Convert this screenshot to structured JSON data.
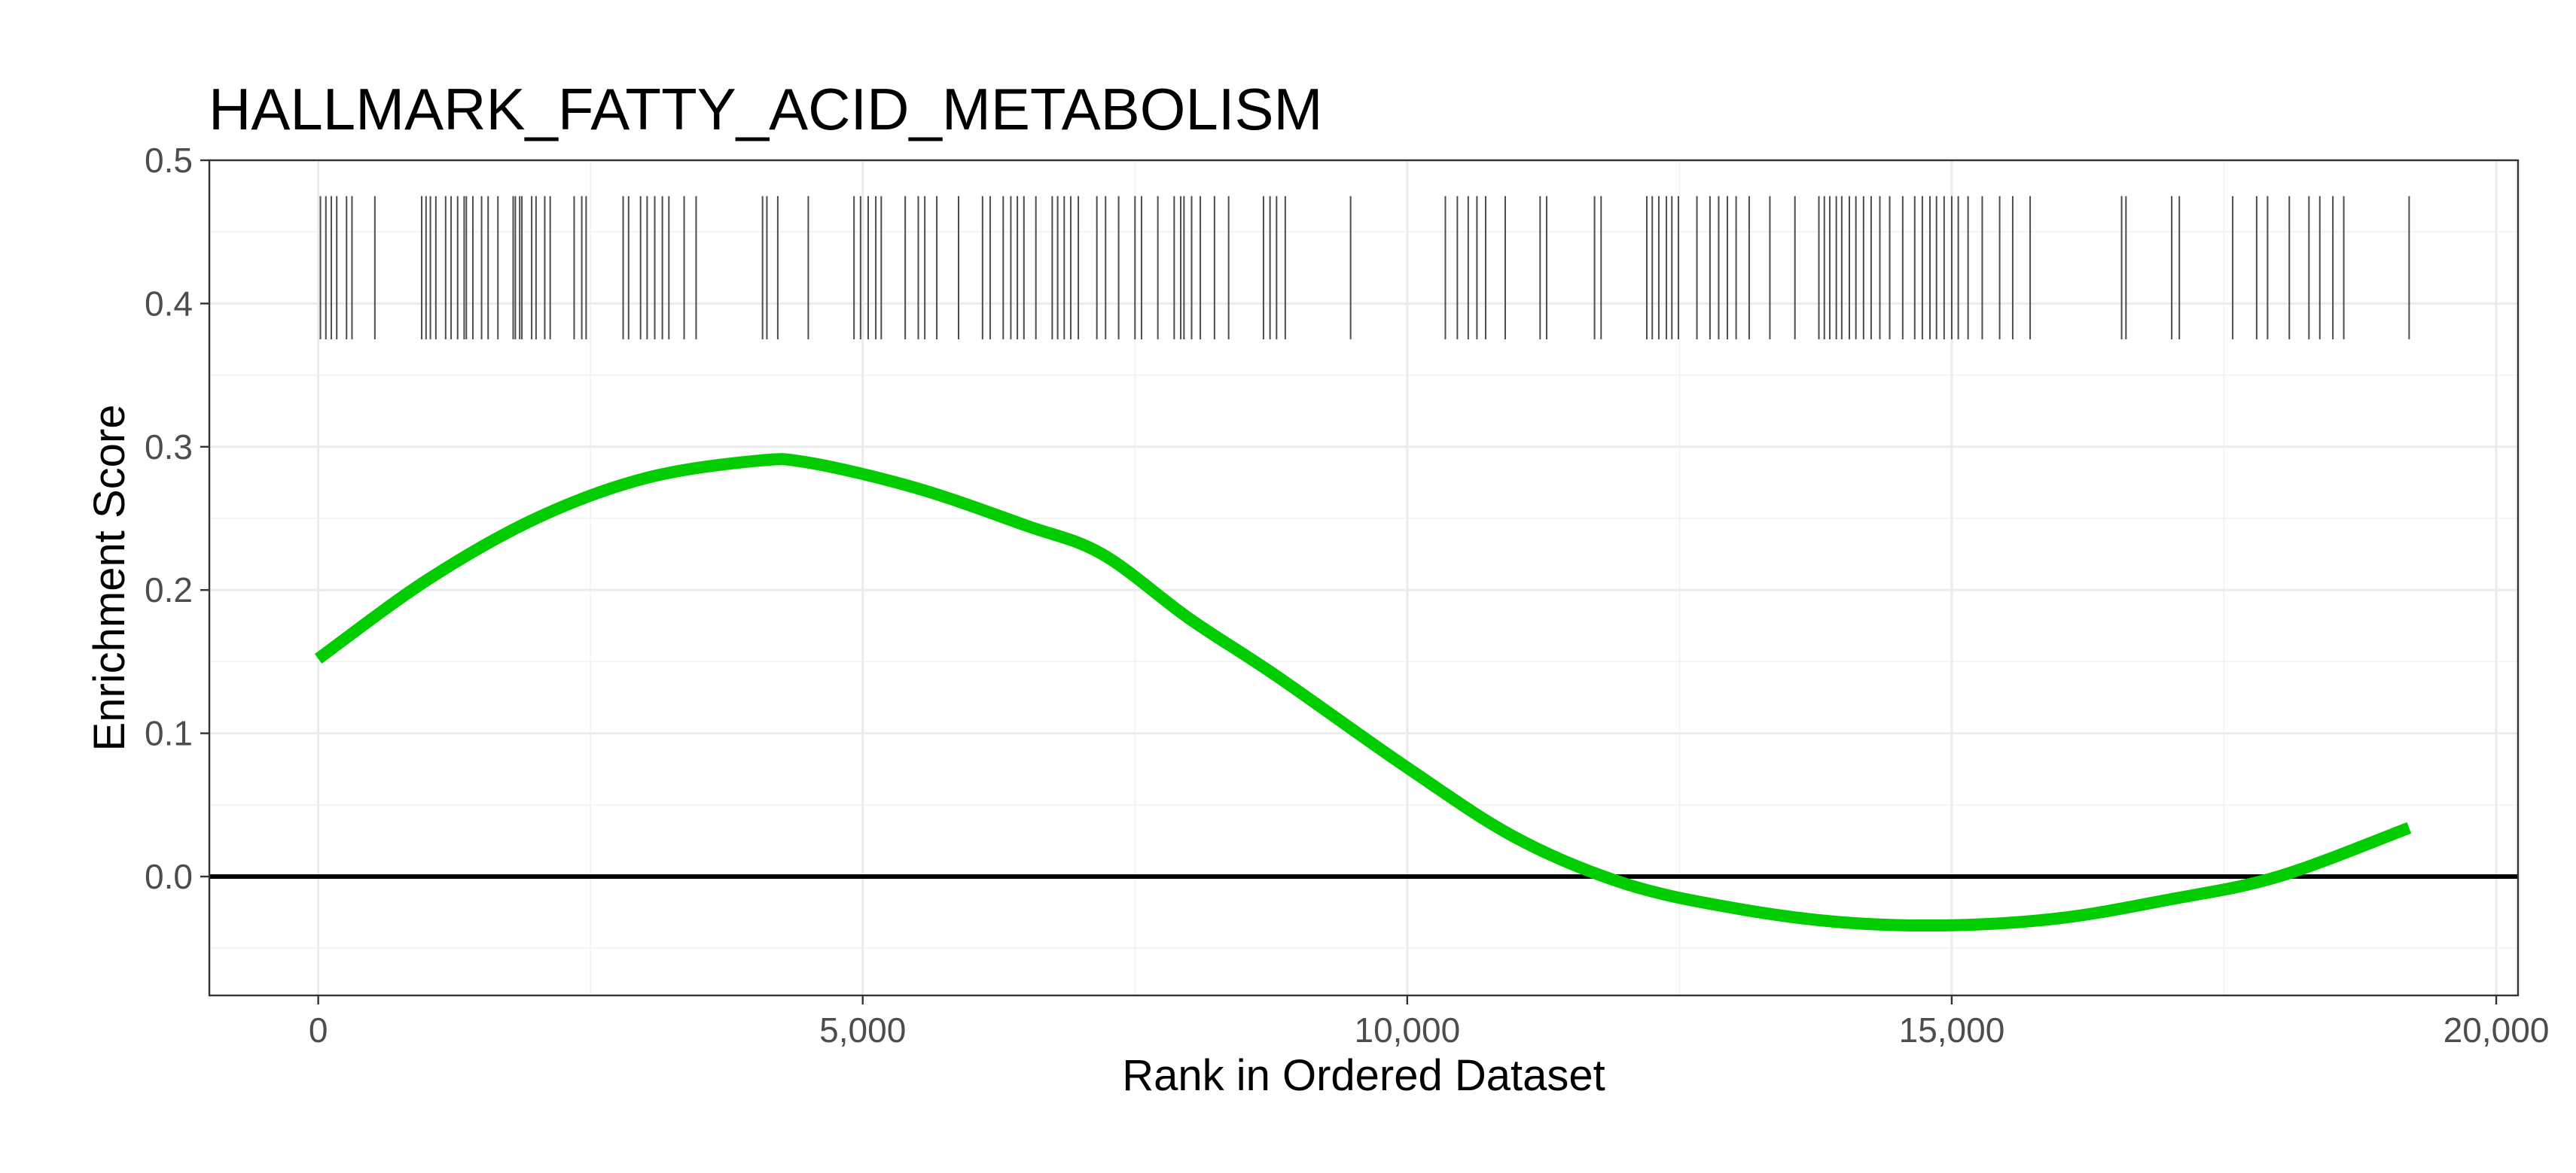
{
  "chart_data": {
    "type": "line",
    "title": "HALLMARK_FATTY_ACID_METABOLISM",
    "xlabel": "Rank in Ordered Dataset",
    "ylabel": "Enrichment Score",
    "xlim": [
      -1000,
      20200
    ],
    "ylim": [
      -0.083,
      0.5
    ],
    "x_ticks": [
      0,
      5000,
      10000,
      15000,
      20000
    ],
    "x_tick_labels": [
      "0",
      "5,000",
      "10,000",
      "15,000",
      "20,000"
    ],
    "y_ticks": [
      0.0,
      0.1,
      0.2,
      0.3,
      0.4,
      0.5
    ],
    "y_tick_labels": [
      "0.0",
      "0.1",
      "0.2",
      "0.3",
      "0.4",
      "0.5"
    ],
    "grid": true,
    "reference_line_y": 0,
    "series": [
      {
        "color": "#00cc00",
        "x": [
          0,
          1000,
          2000,
          3000,
          4000,
          4500,
          5500,
          6500,
          7200,
          8000,
          8800,
          10000,
          11000,
          12000,
          13000,
          14000,
          15000,
          16000,
          17000,
          18000,
          19200
        ],
        "y": [
          0.152,
          0.207,
          0.25,
          0.278,
          0.29,
          0.289,
          0.271,
          0.245,
          0.225,
          0.18,
          0.14,
          0.076,
          0.027,
          -0.005,
          -0.022,
          -0.032,
          -0.034,
          -0.029,
          -0.016,
          0.0,
          0.034
        ]
      }
    ],
    "rug": {
      "color": "#4d4d4d",
      "y_range": [
        0.375,
        0.475
      ],
      "positions": [
        20,
        70,
        120,
        170,
        260,
        310,
        520,
        950,
        990,
        1030,
        1080,
        1170,
        1220,
        1280,
        1340,
        1360,
        1420,
        1500,
        1560,
        1650,
        1790,
        1810,
        1850,
        1870,
        1960,
        2000,
        2080,
        2130,
        2350,
        2420,
        2460,
        2800,
        2850,
        2960,
        3020,
        3090,
        3160,
        3220,
        3360,
        3470,
        4080,
        4120,
        4220,
        4500,
        4920,
        4980,
        5050,
        5120,
        5170,
        5390,
        5510,
        5570,
        5680,
        5880,
        6100,
        6170,
        6290,
        6360,
        6420,
        6480,
        6590,
        6740,
        6790,
        6850,
        6910,
        6980,
        7150,
        7230,
        7350,
        7500,
        7560,
        7710,
        7860,
        7920,
        7950,
        8020,
        8100,
        8230,
        8360,
        8680,
        8740,
        8800,
        8880,
        9480,
        10350,
        10460,
        10560,
        10640,
        10720,
        10900,
        11220,
        11280,
        11720,
        11780,
        12200,
        12250,
        12310,
        12380,
        12430,
        12490,
        12660,
        12780,
        12860,
        12940,
        13020,
        13140,
        13330,
        13560,
        13780,
        13830,
        13880,
        13940,
        13990,
        14060,
        14120,
        14190,
        14260,
        14340,
        14430,
        14550,
        14660,
        14730,
        14800,
        14860,
        14930,
        15000,
        15060,
        15150,
        15280,
        15440,
        15560,
        15720,
        16560,
        16600,
        17020,
        17090,
        17580,
        17800,
        17900,
        18100,
        18280,
        18380,
        18500,
        18600,
        19200
      ]
    }
  }
}
